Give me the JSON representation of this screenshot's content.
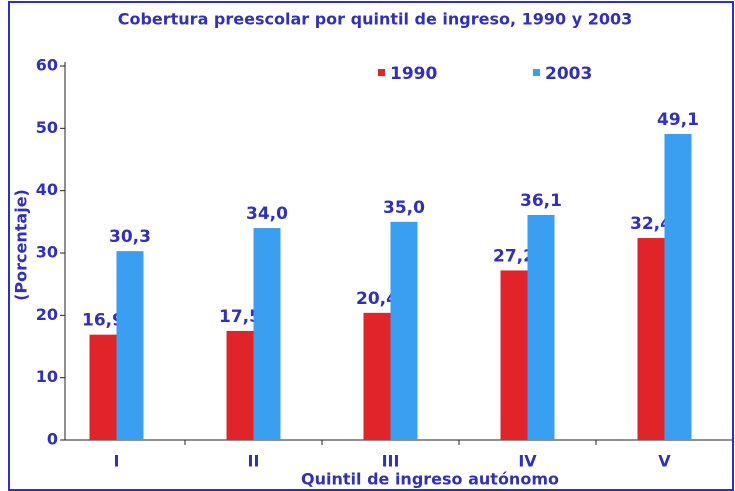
{
  "chart_data": {
    "type": "bar",
    "title": "Cobertura preescolar por quintil de ingreso, 1990 y 2003",
    "x_label": "Quintil de ingreso autónomo",
    "y_label": "(Porcentaje)",
    "categories": [
      "I",
      "II",
      "III",
      "IV",
      "V"
    ],
    "series": [
      {
        "name": "1990",
        "color": "#e0242a",
        "values": [
          16.9,
          17.5,
          20.4,
          27.2,
          32.4
        ],
        "value_labels": [
          "16,9",
          "17,5",
          "20,4",
          "27,2",
          "32,4"
        ]
      },
      {
        "name": "2003",
        "color": "#3a9ff0",
        "values": [
          30.3,
          34.0,
          35.0,
          36.1,
          49.1
        ],
        "value_labels": [
          "30,3",
          "34,0",
          "35,0",
          "36,1",
          "49,1"
        ]
      }
    ],
    "ylim": [
      0,
      60
    ],
    "yticks": [
      0,
      10,
      20,
      30,
      40,
      50,
      60
    ],
    "grid": false,
    "legend": "top"
  }
}
